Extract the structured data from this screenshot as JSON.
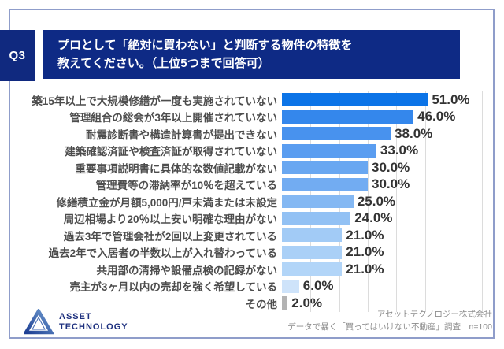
{
  "header": {
    "question_label": "Q3",
    "title_line1": "プロとして「絶対に買わない」と判断する物件の特徴を",
    "title_line2": "教えてください。（上位5つまで回答可）"
  },
  "chart_data": {
    "type": "bar",
    "orientation": "horizontal",
    "title": "プロとして「絶対に買わない」と判断する物件の特徴",
    "categories": [
      "築15年以上で大規模修繕が一度も実施されていない",
      "管理組合の総会が3年以上開催されていない",
      "耐震診断書や構造計算書が提出できない",
      "建築確認済証や検査済証が取得されていない",
      "重要事項説明書に具体的な数値記載がない",
      "管理費等の滞納率が10％を超えている",
      "修繕積立金が月額5,000円/戸未満または未設定",
      "周辺相場より20％以上安い明確な理由がない",
      "過去3年で管理会社が2回以上変更されている",
      "過去2年で入居者の半数以上が入れ替わっている",
      "共用部の清掃や設備点検の記録がない",
      "売主が3ヶ月以内の売却を強く希望している",
      "その他"
    ],
    "values": [
      51.0,
      46.0,
      38.0,
      33.0,
      30.0,
      30.0,
      25.0,
      24.0,
      21.0,
      21.0,
      21.0,
      6.0,
      2.0
    ],
    "value_labels": [
      "51.0%",
      "46.0%",
      "38.0%",
      "33.0%",
      "30.0%",
      "30.0%",
      "25.0%",
      "24.0%",
      "21.0%",
      "21.0%",
      "21.0%",
      "6.0%",
      "2.0%"
    ],
    "bar_colors": [
      "#0c74e7",
      "#3487ec",
      "#4892ee",
      "#5a9df0",
      "#69a7f1",
      "#72acf2",
      "#84b8f3",
      "#92c1f4",
      "#a2cbf6",
      "#aad0f7",
      "#b2d5f8",
      "#cee3fa",
      "#b3b3b3"
    ],
    "unit": "%",
    "xlim": [
      0,
      71
    ],
    "gridline_interval": 10,
    "grid": true,
    "legend": false
  },
  "footer": {
    "logo_text_line1": "ASSET",
    "logo_text_line2": "TECHNOLOGY",
    "source_line1": "アセットテクノロジー株式会社",
    "source_line2": "データで暴く「買ってはいけない不動産」調査｜n=100"
  },
  "colors": {
    "banner_bg": "#0e2a85",
    "question_bg": "#10297f",
    "frame_border": "#8f9dca",
    "label_text": "#4d4d4d",
    "value_text": "#333333",
    "gridline": "#dcdcdc",
    "source_text": "#8c8c8c",
    "logo_navy": "#1c2f7e",
    "other_bar_gray": "#b3b3b3"
  }
}
